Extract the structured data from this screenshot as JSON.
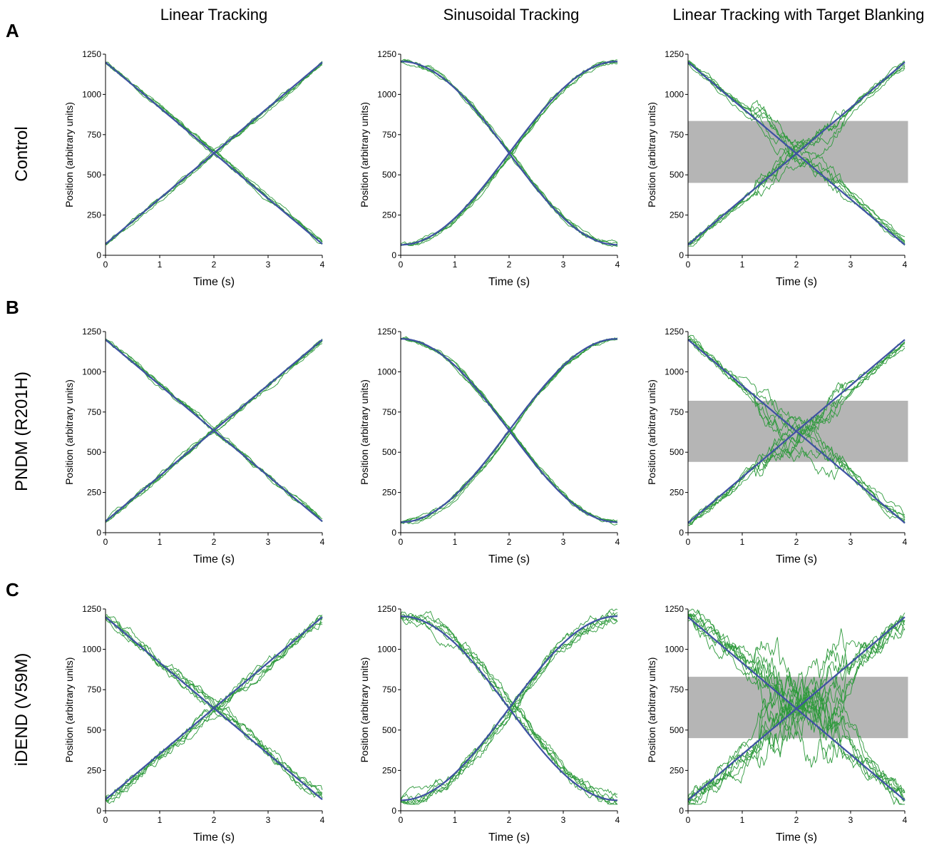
{
  "figure": {
    "column_titles": [
      "Linear Tracking",
      "Sinusoidal Tracking",
      "Linear Tracking with Target Blanking"
    ],
    "row_titles": [
      "Control",
      "PNDM (R201H)",
      "iDEND (V59M)"
    ],
    "panel_letters": [
      "A",
      "B",
      "C"
    ]
  },
  "colors": {
    "target": "#3f51a3",
    "cursor": "#2e9a3c",
    "blank_region": "#b5b5b5",
    "axis": "#000000"
  },
  "chart_data": [
    {
      "type": "line",
      "panel": "A",
      "subplot": "linear",
      "title": "",
      "xlabel": "Time (s)",
      "ylabel": "Position (arbitrary units)",
      "xlim": [
        0,
        4
      ],
      "ylim": [
        0,
        1250
      ],
      "xticks": [
        0,
        1,
        2,
        3,
        4
      ],
      "yticks": [
        0,
        250,
        500,
        750,
        1000,
        1250
      ],
      "series": [
        {
          "role": "target",
          "x": [
            0,
            4
          ],
          "y": [
            1200,
            70
          ]
        },
        {
          "role": "target",
          "x": [
            0,
            4
          ],
          "y": [
            70,
            1200
          ]
        }
      ],
      "tracking": {
        "n": 5,
        "noise": 18,
        "lag": 0.02,
        "seed": 11
      }
    },
    {
      "type": "line",
      "panel": "A",
      "subplot": "sinusoidal",
      "title": "",
      "xlabel": "Time (s)",
      "ylabel": "Position (arbitrary units)",
      "xlim": [
        0,
        4
      ],
      "ylim": [
        0,
        1250
      ],
      "xticks": [
        0,
        1,
        2,
        3,
        4
      ],
      "yticks": [
        0,
        250,
        500,
        750,
        1000,
        1250
      ],
      "series": [
        {
          "role": "target",
          "x": [
            0,
            0.5,
            1,
            1.5,
            2,
            2.5,
            3,
            3.5,
            4
          ],
          "y": [
            1205,
            1162,
            1040,
            856,
            635,
            414,
            230,
            108,
            65
          ]
        },
        {
          "role": "target",
          "x": [
            0,
            0.5,
            1,
            1.5,
            2,
            2.5,
            3,
            3.5,
            4
          ],
          "y": [
            65,
            108,
            230,
            414,
            635,
            856,
            1040,
            1162,
            1205
          ]
        }
      ],
      "tracking": {
        "n": 5,
        "noise": 20,
        "lag": 0.03,
        "seed": 23
      }
    },
    {
      "type": "line",
      "panel": "A",
      "subplot": "blanking",
      "title": "",
      "xlabel": "Time (s)",
      "ylabel": "Position (arbitrary units)",
      "xlim": [
        0,
        4
      ],
      "ylim": [
        0,
        1250
      ],
      "xticks": [
        0,
        1,
        2,
        3,
        4
      ],
      "yticks": [
        0,
        250,
        500,
        750,
        1000,
        1250
      ],
      "blank_band": [
        450,
        835
      ],
      "series": [
        {
          "role": "target",
          "x": [
            0,
            4
          ],
          "y": [
            1200,
            65
          ]
        },
        {
          "role": "target",
          "x": [
            0,
            4
          ],
          "y": [
            65,
            1200
          ]
        }
      ],
      "tracking": {
        "n": 6,
        "noise": 28,
        "lag": 0.03,
        "seed": 37
      }
    },
    {
      "type": "line",
      "panel": "B",
      "subplot": "linear",
      "title": "",
      "xlabel": "Time (s)",
      "ylabel": "Position (arbitrary units)",
      "xlim": [
        0,
        4
      ],
      "ylim": [
        0,
        1250
      ],
      "xticks": [
        0,
        1,
        2,
        3,
        4
      ],
      "yticks": [
        0,
        250,
        500,
        750,
        1000,
        1250
      ],
      "series": [
        {
          "role": "target",
          "x": [
            0,
            4
          ],
          "y": [
            1200,
            70
          ]
        },
        {
          "role": "target",
          "x": [
            0,
            4
          ],
          "y": [
            70,
            1200
          ]
        }
      ],
      "tracking": {
        "n": 5,
        "noise": 20,
        "lag": 0.02,
        "seed": 41
      }
    },
    {
      "type": "line",
      "panel": "B",
      "subplot": "sinusoidal",
      "title": "",
      "xlabel": "Time (s)",
      "ylabel": "Position (arbitrary units)",
      "xlim": [
        0,
        4
      ],
      "ylim": [
        0,
        1250
      ],
      "xticks": [
        0,
        1,
        2,
        3,
        4
      ],
      "yticks": [
        0,
        250,
        500,
        750,
        1000,
        1250
      ],
      "series": [
        {
          "role": "target",
          "x": [
            0,
            0.5,
            1,
            1.5,
            2,
            2.5,
            3,
            3.5,
            4
          ],
          "y": [
            1205,
            1162,
            1040,
            856,
            635,
            414,
            230,
            108,
            65
          ]
        },
        {
          "role": "target",
          "x": [
            0,
            0.5,
            1,
            1.5,
            2,
            2.5,
            3,
            3.5,
            4
          ],
          "y": [
            65,
            108,
            230,
            414,
            635,
            856,
            1040,
            1162,
            1205
          ]
        }
      ],
      "tracking": {
        "n": 5,
        "noise": 18,
        "lag": 0.03,
        "seed": 53
      }
    },
    {
      "type": "line",
      "panel": "B",
      "subplot": "blanking",
      "title": "",
      "xlabel": "Time (s)",
      "ylabel": "Position (arbitrary units)",
      "xlim": [
        0,
        4
      ],
      "ylim": [
        0,
        1250
      ],
      "xticks": [
        0,
        1,
        2,
        3,
        4
      ],
      "yticks": [
        0,
        250,
        500,
        750,
        1000,
        1250
      ],
      "blank_band": [
        440,
        820
      ],
      "series": [
        {
          "role": "target",
          "x": [
            0,
            4
          ],
          "y": [
            1200,
            60
          ]
        },
        {
          "role": "target",
          "x": [
            0,
            4
          ],
          "y": [
            60,
            1200
          ]
        }
      ],
      "tracking": {
        "n": 6,
        "noise": 35,
        "lag": 0.05,
        "seed": 67
      }
    },
    {
      "type": "line",
      "panel": "C",
      "subplot": "linear",
      "title": "",
      "xlabel": "Time (s)",
      "ylabel": "Position (arbitrary units)",
      "xlim": [
        0,
        4
      ],
      "ylim": [
        0,
        1250
      ],
      "xticks": [
        0,
        1,
        2,
        3,
        4
      ],
      "yticks": [
        0,
        250,
        500,
        750,
        1000,
        1250
      ],
      "series": [
        {
          "role": "target",
          "x": [
            0,
            4
          ],
          "y": [
            1200,
            70
          ]
        },
        {
          "role": "target",
          "x": [
            0,
            4
          ],
          "y": [
            70,
            1200
          ]
        }
      ],
      "tracking": {
        "n": 6,
        "noise": 45,
        "lag": 0.06,
        "seed": 79
      }
    },
    {
      "type": "line",
      "panel": "C",
      "subplot": "sinusoidal",
      "title": "",
      "xlabel": "Time (s)",
      "ylabel": "Position (arbitrary units)",
      "xlim": [
        0,
        4
      ],
      "ylim": [
        0,
        1250
      ],
      "xticks": [
        0,
        1,
        2,
        3,
        4
      ],
      "yticks": [
        0,
        250,
        500,
        750,
        1000,
        1250
      ],
      "series": [
        {
          "role": "target",
          "x": [
            0,
            0.5,
            1,
            1.5,
            2,
            2.5,
            3,
            3.5,
            4
          ],
          "y": [
            1205,
            1162,
            1040,
            856,
            635,
            414,
            230,
            108,
            65
          ]
        },
        {
          "role": "target",
          "x": [
            0,
            0.5,
            1,
            1.5,
            2,
            2.5,
            3,
            3.5,
            4
          ],
          "y": [
            65,
            108,
            230,
            414,
            635,
            856,
            1040,
            1162,
            1205
          ]
        }
      ],
      "tracking": {
        "n": 6,
        "noise": 50,
        "lag": 0.07,
        "seed": 97
      }
    },
    {
      "type": "line",
      "panel": "C",
      "subplot": "blanking",
      "title": "",
      "xlabel": "Time (s)",
      "ylabel": "Position (arbitrary units)",
      "xlim": [
        0,
        4
      ],
      "ylim": [
        0,
        1250
      ],
      "xticks": [
        0,
        1,
        2,
        3,
        4
      ],
      "yticks": [
        0,
        250,
        500,
        750,
        1000,
        1250
      ],
      "blank_band": [
        450,
        830
      ],
      "series": [
        {
          "role": "target",
          "x": [
            0,
            4
          ],
          "y": [
            1200,
            65
          ]
        },
        {
          "role": "target",
          "x": [
            0,
            4
          ],
          "y": [
            65,
            1200
          ]
        }
      ],
      "tracking": {
        "n": 8,
        "noise": 80,
        "lag": 0.08,
        "seed": 113
      }
    }
  ]
}
